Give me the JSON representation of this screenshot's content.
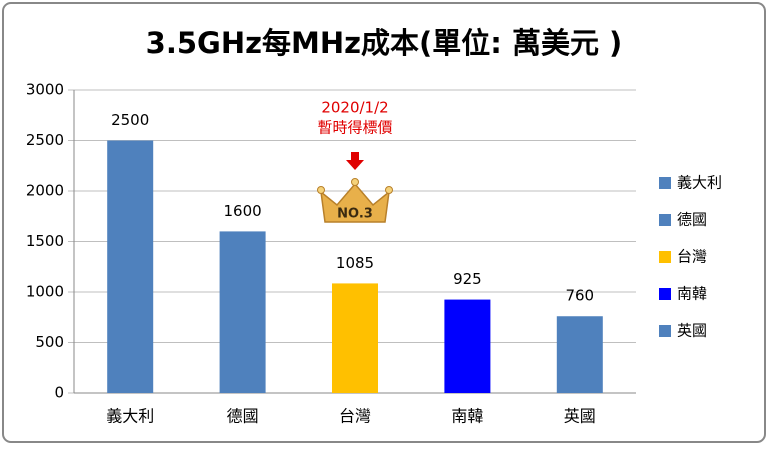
{
  "chart_data": {
    "type": "bar",
    "title": "3.5GHz每MHz成本(單位: 萬美元 )",
    "categories": [
      "義大利",
      "德國",
      "台灣",
      "南韓",
      "英國"
    ],
    "values": [
      2500,
      1600,
      1085,
      925,
      760
    ],
    "colors": [
      "#4f81bd",
      "#4f81bd",
      "#ffc000",
      "#0000ff",
      "#4f81bd"
    ],
    "ylim": [
      0,
      3000
    ],
    "yticks": [
      0,
      500,
      1000,
      1500,
      2000,
      2500,
      3000
    ],
    "grid": true,
    "legend": "right",
    "annotation": {
      "lines": [
        "2020/1/2",
        "暫時得標價"
      ],
      "badge": "NO.3",
      "category_index": 2
    }
  }
}
